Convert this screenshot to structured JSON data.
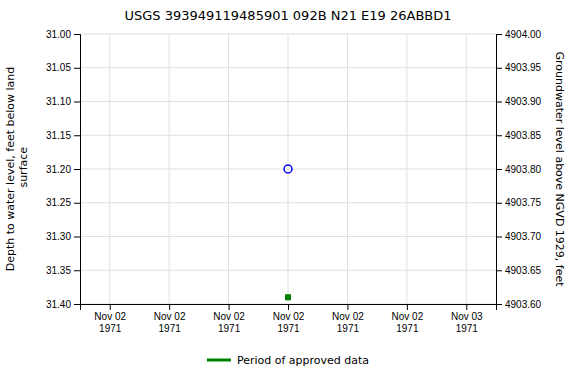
{
  "chart_data": {
    "type": "scatter",
    "title": "USGS 393949119485901 092B N21 E19 26ABBD1",
    "y_label": "Depth to water level, feet below land\n surface",
    "y2_label": "Groundwater level above NGVD 1929, feet",
    "categories": [
      "Nov 02\n1971",
      "Nov 02\n1971",
      "Nov 02\n1971",
      "Nov 02\n1971",
      "Nov 02\n1971",
      "Nov 02\n1971",
      "Nov 03\n1971"
    ],
    "series": [
      {
        "color": "#0000ff",
        "marker": "circle",
        "values": [
          null,
          null,
          null,
          31.2,
          null,
          null,
          null
        ]
      },
      {
        "name": "Period of approved data",
        "color": "#008000",
        "marker": "square",
        "values": [
          null,
          null,
          null,
          31.39,
          null,
          null,
          null
        ]
      }
    ],
    "ylim": [
      31.4,
      31.0
    ],
    "yticks": [
      {
        "value": 31.0,
        "label": "31.00"
      },
      31.05,
      {
        "value": 31.1,
        "label": "31.10"
      },
      31.15,
      {
        "value": 31.2,
        "label": "31.20"
      },
      31.25,
      {
        "value": 31.3,
        "label": "31.30"
      },
      31.35,
      {
        "value": 31.4,
        "label": "31.40"
      }
    ],
    "y2lim": [
      4903.6,
      4904.0
    ],
    "y2ticks": [
      {
        "value": 4904.0,
        "label": "4904.00"
      },
      4903.95,
      {
        "value": 4903.9,
        "label": "4903.90"
      },
      4903.85,
      {
        "value": 4903.8,
        "label": "4903.80"
      },
      4903.75,
      {
        "value": 4903.7,
        "label": "4903.70"
      },
      4903.65,
      {
        "value": 4903.6,
        "label": "4903.60"
      }
    ],
    "grid": true,
    "legend": "bottom"
  }
}
